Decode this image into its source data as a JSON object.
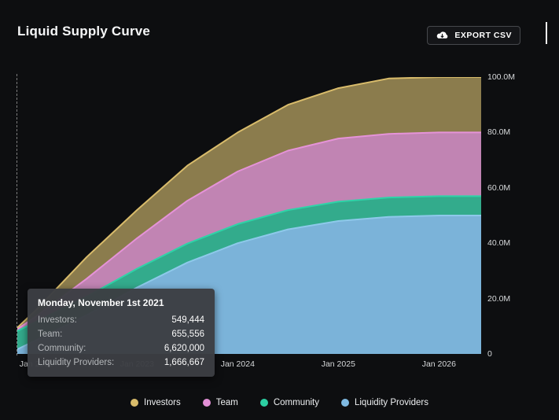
{
  "page": {
    "title": "Liquid Supply Curve",
    "bg": "#0d0e10"
  },
  "toolbar": {
    "export_label": "EXPORT CSV"
  },
  "tooltip": {
    "title": "Monday, November 1st 2021",
    "rows": [
      {
        "label": "Investors:",
        "value": "549,444"
      },
      {
        "label": "Team:",
        "value": "655,556"
      },
      {
        "label": "Community:",
        "value": "6,620,000"
      },
      {
        "label": "Liquidity Providers:",
        "value": "1,666,667"
      }
    ]
  },
  "legend": {
    "items": [
      {
        "label": "Investors",
        "color": "#d9bc6b"
      },
      {
        "label": "Team",
        "color": "#e28fd6"
      },
      {
        "label": "Community",
        "color": "#2ccfa2"
      },
      {
        "label": "Liquidity Providers",
        "color": "#7fbae2"
      }
    ]
  },
  "chart_data": {
    "type": "area",
    "stacked": true,
    "title": "Liquid Supply Curve",
    "unit": "M tokens",
    "x_unit": "year (fractional, Jan = .0)",
    "x": [
      2021.81,
      2022.0,
      2022.5,
      2023.0,
      2023.5,
      2024.0,
      2024.5,
      2025.0,
      2025.5,
      2026.0,
      2026.42
    ],
    "series": [
      {
        "name": "Liquidity Providers",
        "stroke": "#8ec9ea",
        "fill": "#7bb3d9",
        "values": [
          1.67,
          5,
          14,
          24,
          33,
          40,
          45,
          48,
          49.5,
          50,
          50
        ]
      },
      {
        "name": "Community",
        "stroke": "#2fd3a8",
        "fill": "#33ab8c",
        "values": [
          6.62,
          6.65,
          6.7,
          6.8,
          6.85,
          6.9,
          6.95,
          7,
          7,
          7,
          7
        ]
      },
      {
        "name": "Team",
        "stroke": "#e593d8",
        "fill": "#c184b3",
        "values": [
          0.66,
          2,
          6.5,
          11,
          15.5,
          19,
          21.5,
          22.8,
          23,
          23,
          23
        ]
      },
      {
        "name": "Investors",
        "stroke": "#d9bc6b",
        "fill": "#8b7c4d",
        "values": [
          0.55,
          2.35,
          7.8,
          10.2,
          12.65,
          14.1,
          16.55,
          18.2,
          20,
          20,
          20
        ]
      }
    ],
    "ylim": [
      0,
      100
    ],
    "yticks": [
      {
        "v": 0,
        "label": "0"
      },
      {
        "v": 20,
        "label": "20.0M"
      },
      {
        "v": 40,
        "label": "40.0M"
      },
      {
        "v": 60,
        "label": "60.0M"
      },
      {
        "v": 80,
        "label": "80.0M"
      },
      {
        "v": 100,
        "label": "100.0M"
      }
    ],
    "xticks": [
      {
        "v": 2022,
        "label": "Jan 2022"
      },
      {
        "v": 2023,
        "label": "Jan 2023"
      },
      {
        "v": 2024,
        "label": "Jan 2024"
      },
      {
        "v": 2025,
        "label": "Jan 2025"
      },
      {
        "v": 2026,
        "label": "Jan 2026"
      }
    ],
    "crosshair_year": 2021.835,
    "legend_position": "bottom",
    "grid": false
  }
}
